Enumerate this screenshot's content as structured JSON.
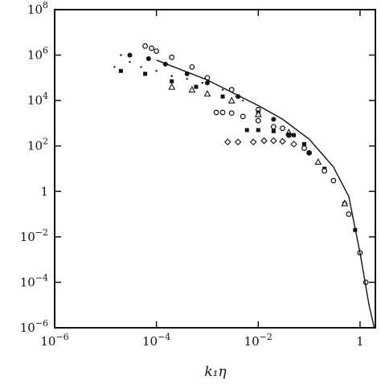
{
  "chart_data": {
    "type": "scatter",
    "title": "",
    "xlabel": "k₁η",
    "ylabel": "",
    "x_scale": "log",
    "y_scale": "log",
    "xlim": [
      1e-06,
      2
    ],
    "ylim": [
      1e-06,
      100000000.0
    ],
    "x_ticks": [
      {
        "value": 1e-06,
        "base": "10",
        "exp": "−6"
      },
      {
        "value": 0.0001,
        "base": "10",
        "exp": "−4"
      },
      {
        "value": 0.01,
        "base": "10",
        "exp": "−2"
      },
      {
        "value": 1,
        "base": "1",
        "exp": ""
      }
    ],
    "y_ticks": [
      {
        "value": 100000000.0,
        "base": "10",
        "exp": "8"
      },
      {
        "value": 1000000.0,
        "base": "10",
        "exp": "6"
      },
      {
        "value": 10000.0,
        "base": "10",
        "exp": "4"
      },
      {
        "value": 100.0,
        "base": "10",
        "exp": "2"
      },
      {
        "value": 1,
        "base": "1",
        "exp": ""
      },
      {
        "value": 0.01,
        "base": "10",
        "exp": "−2"
      },
      {
        "value": 0.0001,
        "base": "10",
        "exp": "−4"
      },
      {
        "value": 1e-06,
        "base": "10",
        "exp": "−6"
      }
    ],
    "grid": false,
    "legend": "none",
    "series": [
      {
        "marker": "open-circle",
        "x": [
          6e-05,
          8e-05,
          0.0001,
          0.0002,
          0.0005,
          0.001,
          0.003,
          0.01,
          0.03,
          0.1,
          0.3,
          0.6,
          1.0,
          1.3
        ],
        "y": [
          2500000.0,
          2000000.0,
          1500000.0,
          800000.0,
          300000.0,
          100000.0,
          30000.0,
          4000.0,
          600,
          50,
          3,
          0.1,
          0.002,
          0.0001
        ]
      },
      {
        "marker": "filled-circle",
        "x": [
          3e-05,
          7e-05,
          0.00015,
          0.0004,
          0.001,
          0.004,
          0.02,
          0.1,
          0.5
        ],
        "y": [
          1000000.0,
          700000.0,
          400000.0,
          150000.0,
          60000.0,
          15000.0,
          1500.0,
          50,
          0.3
        ]
      },
      {
        "marker": "filled-square",
        "x": [
          2e-05,
          6e-05,
          0.0002,
          0.0006,
          0.002,
          0.01,
          0.05,
          0.2,
          0.8
        ],
        "y": [
          200000.0,
          150000.0,
          70000.0,
          40000.0,
          15000.0,
          3000.0,
          300,
          10,
          0.02
        ]
      },
      {
        "marker": "open-triangle",
        "x": [
          0.0002,
          0.0005,
          0.001,
          0.003,
          0.01,
          0.04,
          0.15,
          0.5
        ],
        "y": [
          40000.0,
          30000.0,
          20000.0,
          10000.0,
          2500.0,
          400,
          20,
          0.3
        ]
      },
      {
        "marker": "small-dot",
        "x": [
          1.5e-05,
          2e-05,
          3e-05,
          5e-05,
          0.0001,
          0.0002,
          0.0004,
          0.0008,
          0.002,
          0.005
        ],
        "y": [
          300000.0,
          1000000.0,
          500000.0,
          300000.0,
          200000.0,
          120000.0,
          90000.0,
          60000.0,
          30000.0,
          10000.0
        ]
      },
      {
        "marker": "open-circle",
        "x": [
          0.0015,
          0.002,
          0.003,
          0.005,
          0.01,
          0.02,
          0.04,
          0.08,
          0.2
        ],
        "y": [
          3000.0,
          3000.0,
          2800.0,
          2000.0,
          1300.0,
          700,
          300,
          80,
          8
        ]
      },
      {
        "marker": "filled-square",
        "x": [
          0.006,
          0.01,
          0.02,
          0.04,
          0.08
        ],
        "y": [
          500,
          500,
          450,
          300,
          120
        ]
      },
      {
        "marker": "open-diamond",
        "x": [
          0.0025,
          0.004,
          0.008,
          0.013,
          0.02,
          0.03,
          0.05
        ],
        "y": [
          150,
          150,
          150,
          170,
          170,
          160,
          120
        ]
      },
      {
        "marker": "line",
        "x": [
          0.0001,
          0.001,
          0.01,
          0.03,
          0.1,
          0.3,
          0.6,
          1.0,
          1.5,
          1.9
        ],
        "y": [
          600000.0,
          80000.0,
          6000.0,
          1500.0,
          200,
          12,
          0.6,
          0.002,
          1e-05,
          5e-07
        ]
      }
    ]
  }
}
